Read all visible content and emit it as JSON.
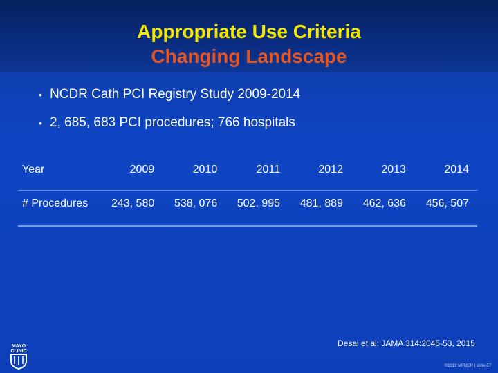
{
  "header": {
    "title": "Appropriate Use Criteria",
    "subtitle": "Changing Landscape"
  },
  "bullets": [
    "NCDR Cath PCI Registry Study 2009-2014",
    "2, 685, 683 PCI procedures; 766 hospitals"
  ],
  "table": {
    "header_label": "Year",
    "years": [
      "2009",
      "2010",
      "2011",
      "2012",
      "2013",
      "2014"
    ],
    "row_label": "# Procedures",
    "values": [
      "243, 580",
      "538, 076",
      "502, 995",
      "481, 889",
      "462, 636",
      "456, 507"
    ]
  },
  "citation": "Desai et al:  JAMA 314:2045-53, 2015",
  "footer": "©2012 MFMER  |  slide-57",
  "logo": {
    "icon": "mayo-clinic-shield-icon",
    "text": "MAYO CLINIC"
  },
  "colors": {
    "title": "#f4e800",
    "subtitle": "#e8541c",
    "background": "#0f45c4"
  }
}
